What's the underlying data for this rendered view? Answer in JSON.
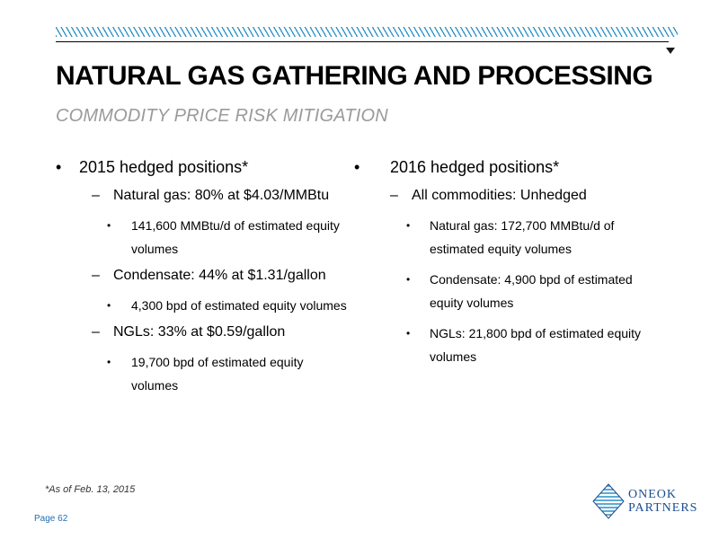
{
  "header": {
    "title": "NATURAL GAS GATHERING AND PROCESSING",
    "subtitle": "COMMODITY PRICE RISK MITIGATION"
  },
  "left": {
    "heading": "2015 hedged positions*",
    "items": [
      {
        "label": "Natural gas: 80%  at $4.03/MMBtu",
        "detail": "141,600 MMBtu/d of estimated equity volumes"
      },
      {
        "label": "Condensate: 44% at $1.31/gallon",
        "detail": "4,300 bpd of estimated equity volumes"
      },
      {
        "label": "NGLs: 33%  at $0.59/gallon",
        "detail": "19,700 bpd of estimated equity volumes"
      }
    ]
  },
  "right": {
    "heading": "2016 hedged positions*",
    "item": "All commodities: Unhedged",
    "details": [
      "Natural gas: 172,700 MMBtu/d of estimated equity volumes",
      "Condensate: 4,900 bpd of estimated equity volumes",
      "NGLs: 21,800 bpd of estimated equity volumes"
    ]
  },
  "footnote": "*As of Feb. 13, 2015",
  "page_label": "Page 62",
  "logo": {
    "line1": "ONEOK",
    "line2": "PARTNERS"
  },
  "colors": {
    "accent_blue": "#2a8fc8",
    "page_blue": "#1f6fb5",
    "subtitle_gray": "#9a9a9a",
    "logo_blue": "#1a4d8f"
  }
}
